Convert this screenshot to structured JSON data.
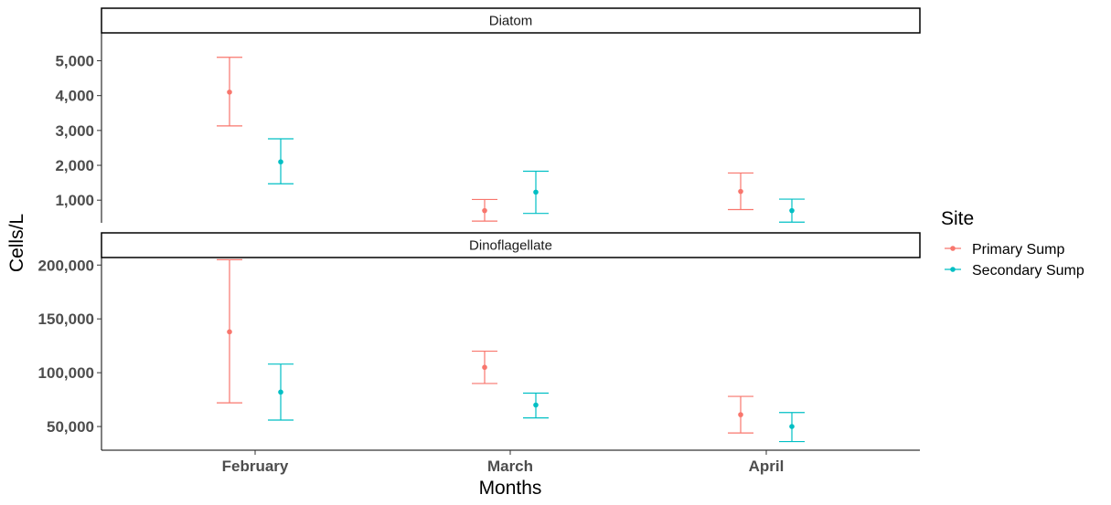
{
  "chart_data": {
    "type": "errorbar",
    "xlabel": "Months",
    "ylabel": "Cells/L",
    "categories": [
      "February",
      "March",
      "April"
    ],
    "legend": {
      "title": "Site",
      "placement": "right",
      "entries": [
        {
          "name": "Primary Sump",
          "color": "#F8766D"
        },
        {
          "name": "Secondary Sump",
          "color": "#00BFC4"
        }
      ]
    },
    "panels": [
      {
        "title": "Diatom",
        "ylim": [
          350,
          5800
        ],
        "yticks": [
          1000,
          2000,
          3000,
          4000,
          5000
        ],
        "ytick_labels": [
          "1,000",
          "2,000",
          "3,000",
          "4,000",
          "5,000"
        ],
        "series": [
          {
            "name": "Primary Sump",
            "color": "#F8766D",
            "points": [
              {
                "x": "February",
                "mean": 4100,
                "low": 3130,
                "high": 5100
              },
              {
                "x": "March",
                "mean": 700,
                "low": 400,
                "high": 1020
              },
              {
                "x": "April",
                "mean": 1250,
                "low": 730,
                "high": 1780
              }
            ]
          },
          {
            "name": "Secondary Sump",
            "color": "#00BFC4",
            "points": [
              {
                "x": "February",
                "mean": 2100,
                "low": 1470,
                "high": 2760
              },
              {
                "x": "March",
                "mean": 1230,
                "low": 620,
                "high": 1830
              },
              {
                "x": "April",
                "mean": 700,
                "low": 370,
                "high": 1030
              }
            ]
          }
        ]
      },
      {
        "title": "Dinoflagellate",
        "ylim": [
          28000,
          207000
        ],
        "yticks": [
          50000,
          100000,
          150000,
          200000
        ],
        "ytick_labels": [
          "50,000",
          "100,000",
          "150,000",
          "200,000"
        ],
        "series": [
          {
            "name": "Primary Sump",
            "color": "#F8766D",
            "points": [
              {
                "x": "February",
                "mean": 138000,
                "low": 72000,
                "high": 205000
              },
              {
                "x": "March",
                "mean": 105000,
                "low": 90000,
                "high": 120000
              },
              {
                "x": "April",
                "mean": 61000,
                "low": 44000,
                "high": 78000
              }
            ]
          },
          {
            "name": "Secondary Sump",
            "color": "#00BFC4",
            "points": [
              {
                "x": "February",
                "mean": 82000,
                "low": 56000,
                "high": 108000
              },
              {
                "x": "March",
                "mean": 70000,
                "low": 58000,
                "high": 81000
              },
              {
                "x": "April",
                "mean": 50000,
                "low": 36000,
                "high": 63000
              }
            ]
          }
        ]
      }
    ]
  }
}
